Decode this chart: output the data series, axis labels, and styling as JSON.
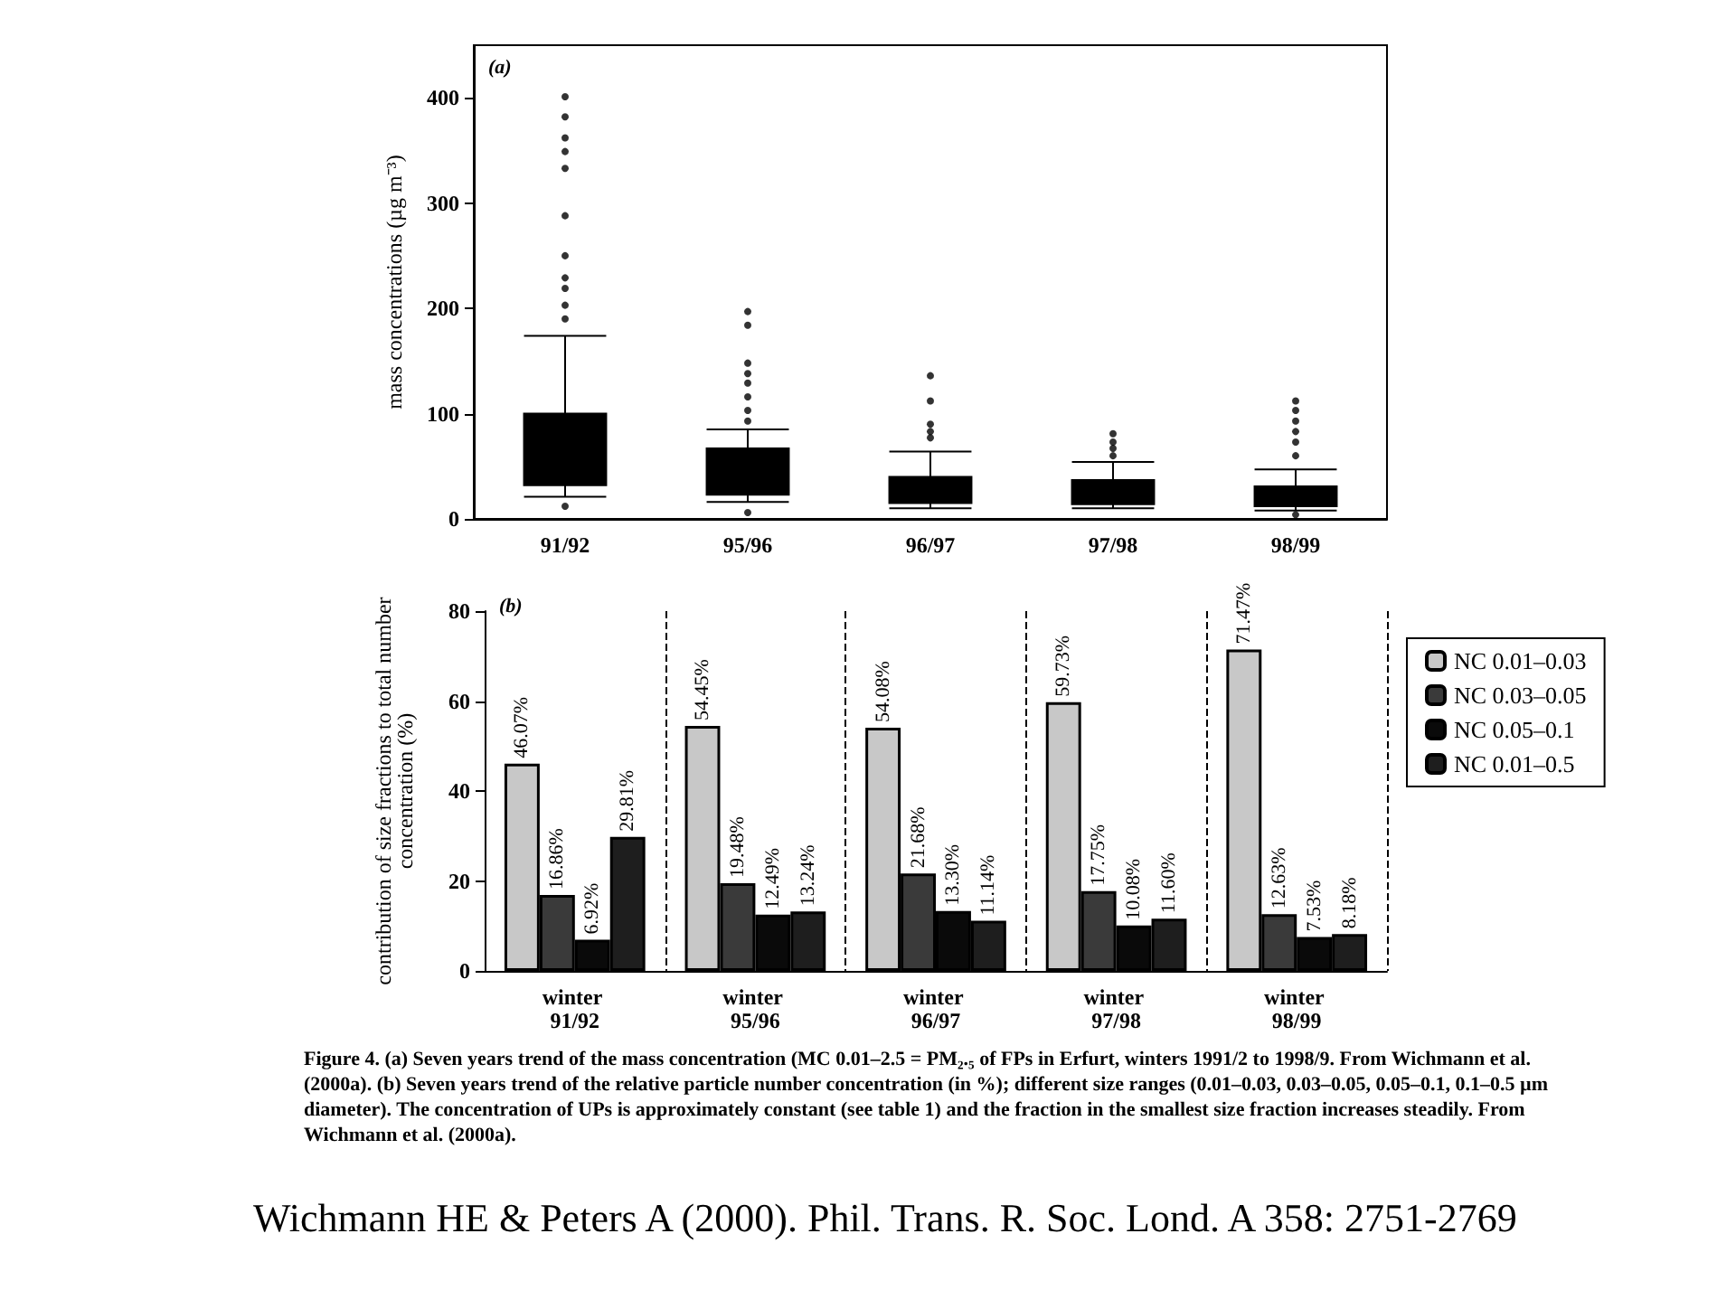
{
  "chart_data": [
    {
      "type": "box",
      "ylabel": "mass concentrations (µg m⁻³)",
      "categories": [
        "91/92",
        "95/96",
        "96/97",
        "97/98",
        "98/99"
      ],
      "ylim": [
        0,
        450
      ],
      "yticks": [
        0,
        100,
        200,
        300,
        400
      ],
      "color": "#000000",
      "annotations": [
        "(a)"
      ],
      "boxes": [
        {
          "low": 21,
          "q1": 32,
          "median": 60,
          "q3": 100,
          "high": 174,
          "outliers": [
            12,
            190,
            203,
            219,
            229,
            250,
            288,
            333,
            349,
            362,
            382,
            401
          ]
        },
        {
          "low": 16,
          "q1": 23,
          "median": 40,
          "q3": 67,
          "high": 85,
          "outliers": [
            6,
            93,
            103,
            116,
            129,
            138,
            148,
            184,
            197
          ]
        },
        {
          "low": 10,
          "q1": 15,
          "median": 25,
          "q3": 40,
          "high": 64,
          "outliers": [
            77,
            83,
            90,
            112,
            136
          ]
        },
        {
          "low": 10,
          "q1": 14,
          "median": 24,
          "q3": 37,
          "high": 54,
          "outliers": [
            60,
            67,
            73,
            81
          ]
        },
        {
          "low": 8,
          "q1": 12,
          "median": 20,
          "q3": 31,
          "high": 47,
          "outliers": [
            4,
            60,
            73,
            83,
            93,
            103,
            112
          ]
        }
      ]
    },
    {
      "type": "bar",
      "ylabel": "contribution of size fractions to total number\nconcentration (%)",
      "categories": [
        "winter 91/92",
        "winter 95/96",
        "winter 96/97",
        "winter 97/98",
        "winter 98/99"
      ],
      "ylim": [
        0,
        80
      ],
      "yticks": [
        0,
        20,
        40,
        60,
        80
      ],
      "grid": "x",
      "legend": "right",
      "annotations": [
        "(b)",
        "Figure 4. (a) Seven years trend of the mass concentration (MC 0.01–2.5 = PM₂.₅ of FPs in Erfurt, winters 1991/2 to 1998/9. From Wichmann et al. (2000a). (b) Seven years trend of the relative particle number concentration (in %); different size ranges (0.01–0.03, 0.03–0.05, 0.05–0.1, 0.1–0.5 µm diameter). The concentration of UPs is approximately constant (see table 1) and the fraction in the smallest size fraction increases steadily. From Wichmann et al. (2000a).",
        "Wichmann HE & Peters A (2000). Phil. Trans. R. Soc. Lond. A 358: 2751-2769"
      ],
      "series": [
        {
          "name": "NC 0.01–0.03",
          "color": "#c8c8c8",
          "values": [
            46.07,
            54.45,
            54.08,
            59.73,
            71.47
          ],
          "value_labels": [
            "46.07%",
            "54.45%",
            "54.08%",
            "59.73%",
            "71.47%"
          ]
        },
        {
          "name": "NC 0.03–0.05",
          "color": "#3a3a3a",
          "values": [
            16.86,
            19.48,
            21.68,
            17.75,
            12.63
          ],
          "value_labels": [
            "16.86%",
            "19.48%",
            "21.68%",
            "17.75%",
            "12.63%"
          ]
        },
        {
          "name": "NC 0.05–0.1",
          "color": "#0a0a0a",
          "values": [
            6.92,
            12.49,
            13.3,
            10.08,
            7.53
          ],
          "value_labels": [
            "6.92%",
            "12.49%",
            "13.30%",
            "10.08%",
            "7.53%"
          ]
        },
        {
          "name": "NC 0.01–0.5",
          "color": "#1e1e1e",
          "values": [
            29.81,
            13.24,
            11.14,
            11.6,
            8.18
          ],
          "value_labels": [
            "29.81%",
            "13.24%",
            "11.14%",
            "11.60%",
            "8.18%"
          ]
        }
      ]
    }
  ]
}
